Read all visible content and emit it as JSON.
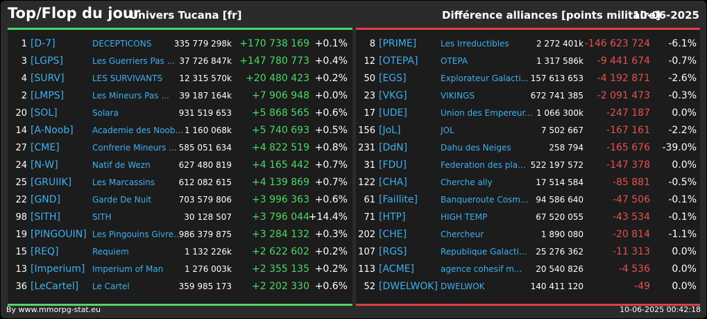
{
  "header": {
    "title": "Top/Flop du jour",
    "universe": "Univers Tucana [fr]",
    "subtitle": "Différence alliances [points militaire]",
    "date": "10-06-2025"
  },
  "colors": {
    "positive": "#4cd964",
    "negative": "#e85050",
    "link": "#3eb0f0"
  },
  "top": [
    {
      "rank": "1",
      "tag": "[D-7]",
      "name": "DECEPTICONS",
      "points": "335 779 298k",
      "diff": "+170 738 169",
      "pct": "+0.1%"
    },
    {
      "rank": "3",
      "tag": "[LGPS]",
      "name": "Les Guerriers Pas ...",
      "points": "37 726 847k",
      "diff": "+147 780 773",
      "pct": "+0.4%"
    },
    {
      "rank": "4",
      "tag": "[SURV]",
      "name": "LES SURVIVANTS",
      "points": "12 315 570k",
      "diff": "+20 480 423",
      "pct": "+0.2%"
    },
    {
      "rank": "2",
      "tag": "[LMPS]",
      "name": "Les Mineurs Pas ...",
      "points": "39 187 164k",
      "diff": "+7 906 948",
      "pct": "+0.0%"
    },
    {
      "rank": "20",
      "tag": "[SOL]",
      "name": "Solara",
      "points": "931 519 653",
      "diff": "+5 868 565",
      "pct": "+0.6%"
    },
    {
      "rank": "14",
      "tag": "[A-Noob]",
      "name": "Academie des Noob...",
      "points": "1 160 068k",
      "diff": "+5 740 693",
      "pct": "+0.5%"
    },
    {
      "rank": "27",
      "tag": "[CME]",
      "name": "Confrerie Mineurs ...",
      "points": "585 051 634",
      "diff": "+4 822 519",
      "pct": "+0.8%"
    },
    {
      "rank": "24",
      "tag": "[N-W]",
      "name": "Natif de Wezn",
      "points": "627 480 819",
      "diff": "+4 165 442",
      "pct": "+0.7%"
    },
    {
      "rank": "25",
      "tag": "[GRUIIK]",
      "name": "Les Marcassins",
      "points": "612 082 615",
      "diff": "+4 139 869",
      "pct": "+0.7%"
    },
    {
      "rank": "22",
      "tag": "[GND]",
      "name": "Garde De Nuit",
      "points": "703 579 806",
      "diff": "+3 996 363",
      "pct": "+0.6%"
    },
    {
      "rank": "98",
      "tag": "[SITH]",
      "name": "SITH",
      "points": "30 128 507",
      "diff": "+3 796 044",
      "pct": "+14.4%"
    },
    {
      "rank": "19",
      "tag": "[PINGOUIN]",
      "name": "Les Pingouins Givre...",
      "points": "986 379 875",
      "diff": "+3 284 132",
      "pct": "+0.3%"
    },
    {
      "rank": "15",
      "tag": "[REQ]",
      "name": "Requiem",
      "points": "1 132 226k",
      "diff": "+2 622 602",
      "pct": "+0.2%"
    },
    {
      "rank": "13",
      "tag": "[Imperium]",
      "name": "Imperium of Man",
      "points": "1 276 003k",
      "diff": "+2 355 135",
      "pct": "+0.2%"
    },
    {
      "rank": "36",
      "tag": "[LeCartel]",
      "name": "Le Cartel",
      "points": "359 985 173",
      "diff": "+2 202 330",
      "pct": "+0.6%"
    }
  ],
  "flop": [
    {
      "rank": "8",
      "tag": "[PRIME]",
      "name": "Les Irreductibles",
      "points": "2 272 401k",
      "diff": "-146 623 724",
      "pct": "-6.1%"
    },
    {
      "rank": "12",
      "tag": "[OTEPA]",
      "name": "OTEPA",
      "points": "1 317 586k",
      "diff": "-9 441 674",
      "pct": "-0.7%"
    },
    {
      "rank": "50",
      "tag": "[EGS]",
      "name": "Explorateur Galacti...",
      "points": "157 613 653",
      "diff": "-4 192 871",
      "pct": "-2.6%"
    },
    {
      "rank": "23",
      "tag": "[VKG]",
      "name": "VIKINGS",
      "points": "672 741 385",
      "diff": "-2 091 473",
      "pct": "-0.3%"
    },
    {
      "rank": "17",
      "tag": "[UDE]",
      "name": "Union des Empereur...",
      "points": "1 066 300k",
      "diff": "-247 187",
      "pct": "0.0%"
    },
    {
      "rank": "156",
      "tag": "[JoL]",
      "name": "JOL",
      "points": "7 502 667",
      "diff": "-167 161",
      "pct": "-2.2%"
    },
    {
      "rank": "231",
      "tag": "[DdN]",
      "name": "Dahu des Neiges",
      "points": "258 794",
      "diff": "-165 676",
      "pct": "-39.0%"
    },
    {
      "rank": "31",
      "tag": "[FDU]",
      "name": "Federation des pla...",
      "points": "522 197 572",
      "diff": "-147 378",
      "pct": "0.0%"
    },
    {
      "rank": "122",
      "tag": "[CHA]",
      "name": "Cherche ally",
      "points": "17 514 584",
      "diff": "-85 881",
      "pct": "-0.5%"
    },
    {
      "rank": "61",
      "tag": "[Faillite]",
      "name": "Banqueroute Cosm...",
      "points": "94 586 640",
      "diff": "-47 506",
      "pct": "-0.1%"
    },
    {
      "rank": "71",
      "tag": "[HTP]",
      "name": "HIGH TEMP",
      "points": "67 520 055",
      "diff": "-43 534",
      "pct": "-0.1%"
    },
    {
      "rank": "202",
      "tag": "[CHE]",
      "name": "Chercheur",
      "points": "1 890 080",
      "diff": "-20 814",
      "pct": "-1.1%"
    },
    {
      "rank": "107",
      "tag": "[RGS]",
      "name": "Republique Galacti...",
      "points": "25 276 362",
      "diff": "-11 313",
      "pct": "0.0%"
    },
    {
      "rank": "113",
      "tag": "[ACME]",
      "name": "agence cohesif m...",
      "points": "20 540 826",
      "diff": "-4 536",
      "pct": "0.0%"
    },
    {
      "rank": "52",
      "tag": "[DWELWOK]",
      "name": "DWELWOK",
      "points": "140 411 120",
      "diff": "-49",
      "pct": "0.0%"
    }
  ],
  "footer": {
    "source": "By www.mmorpg-stat.eu",
    "timestamp": "10-06-2025 00:42:18"
  }
}
